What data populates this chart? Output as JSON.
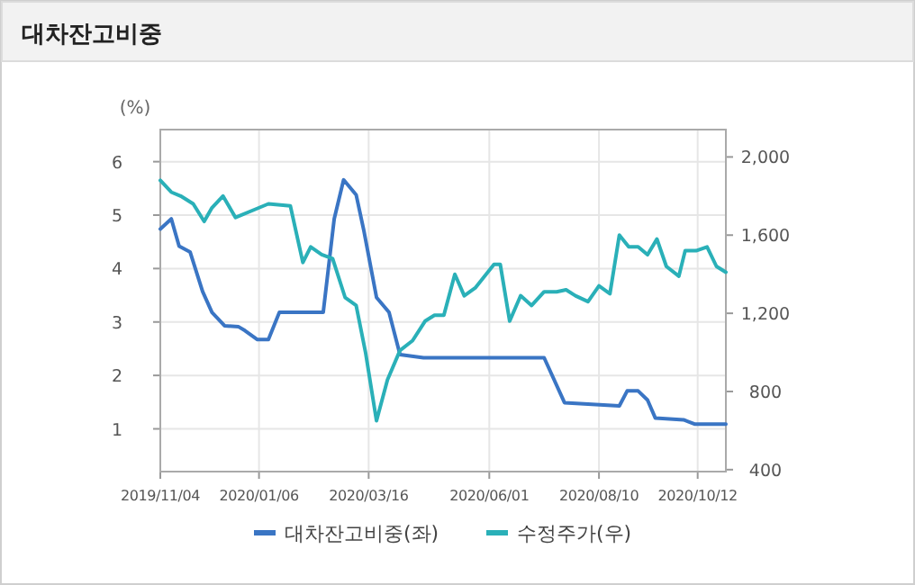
{
  "chart_data": {
    "type": "line",
    "title": "대차잔고비중",
    "ylabel": "(%)",
    "grid": true,
    "legend": "bottom",
    "xlim": [
      "2019-11-04",
      "2020-10-30"
    ],
    "xticks": [
      {
        "value": "2019-11-04",
        "label": "2019/11/04"
      },
      {
        "value": "2020-01-06",
        "label": "2020/01/06"
      },
      {
        "value": "2020-03-16",
        "label": "2020/03/16"
      },
      {
        "value": "2020-06-01",
        "label": "2020/06/01"
      },
      {
        "value": "2020-08-10",
        "label": "2020/08/10"
      },
      {
        "value": "2020-10-12",
        "label": "2020/10/12"
      }
    ],
    "ylim": [
      0.2,
      6.6
    ],
    "yticks": [
      1,
      2,
      3,
      4,
      5,
      6
    ],
    "y2lim": [
      390,
      2140
    ],
    "y2ticks": [
      {
        "value": 400,
        "label": "400"
      },
      {
        "value": 800,
        "label": "800"
      },
      {
        "value": 1200,
        "label": "1,200"
      },
      {
        "value": 1600,
        "label": "1,600"
      },
      {
        "value": 2000,
        "label": "2,000"
      }
    ],
    "series": [
      {
        "name": "대차잔고비중(좌)",
        "color": "#3a75c4",
        "axis": "y",
        "x": [
          "2019-11-04",
          "2019-11-11",
          "2019-11-16",
          "2019-11-23",
          "2019-12-01",
          "2019-12-07",
          "2019-12-15",
          "2019-12-24",
          "2019-12-28",
          "2020-01-05",
          "2020-01-12",
          "2020-01-19",
          "2020-01-27",
          "2020-02-16",
          "2020-02-23",
          "2020-02-29",
          "2020-03-08",
          "2020-03-13",
          "2020-03-21",
          "2020-03-29",
          "2020-04-05",
          "2020-04-20",
          "2020-07-06",
          "2020-07-19",
          "2020-08-23",
          "2020-08-28",
          "2020-09-04",
          "2020-09-10",
          "2020-09-15",
          "2020-10-03",
          "2020-10-10",
          "2020-10-30"
        ],
        "values": [
          4.74,
          4.93,
          4.42,
          4.31,
          3.57,
          3.18,
          2.93,
          2.91,
          2.84,
          2.67,
          2.67,
          3.18,
          3.18,
          3.18,
          4.93,
          5.66,
          5.38,
          4.7,
          3.46,
          3.18,
          2.39,
          2.33,
          2.33,
          1.49,
          1.43,
          1.71,
          1.71,
          1.54,
          1.2,
          1.17,
          1.09,
          1.09
        ]
      },
      {
        "name": "수정주가(우)",
        "color": "#2ab0b8",
        "axis": "y2",
        "x": [
          "2019-11-04",
          "2019-11-11",
          "2019-11-17",
          "2019-11-25",
          "2019-12-02",
          "2019-12-07",
          "2019-12-14",
          "2019-12-22",
          "2020-01-03",
          "2020-01-12",
          "2020-01-26",
          "2020-02-03",
          "2020-02-08",
          "2020-02-15",
          "2020-02-22",
          "2020-03-01",
          "2020-03-08",
          "2020-03-14",
          "2020-03-21",
          "2020-03-28",
          "2020-04-05",
          "2020-04-13",
          "2020-04-21",
          "2020-04-27",
          "2020-05-03",
          "2020-05-10",
          "2020-05-16",
          "2020-05-23",
          "2020-06-04",
          "2020-06-08",
          "2020-06-14",
          "2020-06-21",
          "2020-06-28",
          "2020-07-06",
          "2020-07-14",
          "2020-07-20",
          "2020-07-26",
          "2020-08-03",
          "2020-08-10",
          "2020-08-17",
          "2020-08-23",
          "2020-08-29",
          "2020-09-04",
          "2020-09-10",
          "2020-09-16",
          "2020-09-22",
          "2020-09-30",
          "2020-10-04",
          "2020-10-11",
          "2020-10-18",
          "2020-10-24",
          "2020-10-30"
        ],
        "values": [
          1880,
          1820,
          1800,
          1760,
          1670,
          1740,
          1800,
          1690,
          1730,
          1760,
          1750,
          1460,
          1540,
          1500,
          1480,
          1280,
          1240,
          1000,
          650,
          860,
          1010,
          1060,
          1160,
          1190,
          1190,
          1400,
          1290,
          1330,
          1450,
          1450,
          1160,
          1290,
          1240,
          1310,
          1310,
          1320,
          1290,
          1260,
          1340,
          1300,
          1600,
          1540,
          1540,
          1500,
          1580,
          1440,
          1390,
          1520,
          1520,
          1540,
          1440,
          1410
        ]
      }
    ]
  }
}
